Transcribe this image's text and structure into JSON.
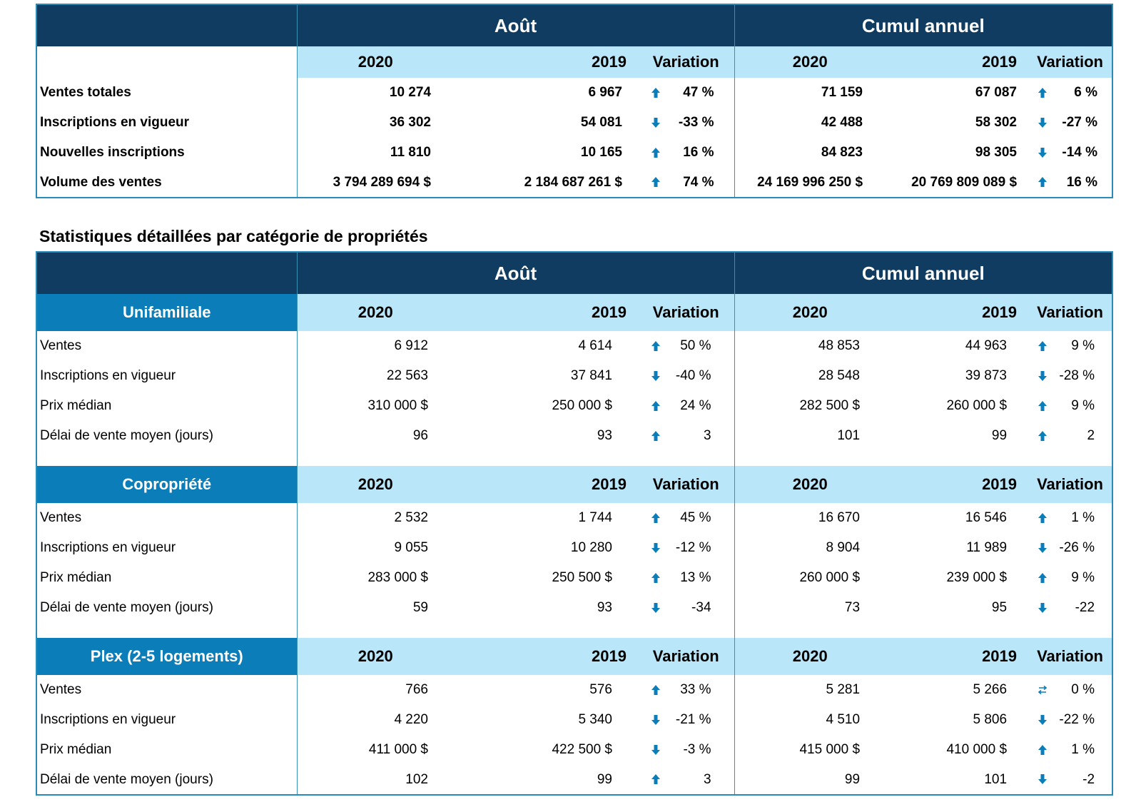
{
  "colors": {
    "dark_header": "#0f3c60",
    "light_header": "#b9e6f9",
    "category": "#0b7db8",
    "arrow": "#0b7db8"
  },
  "summary": {
    "period1": "Août",
    "period2": "Cumul annuel",
    "cols": [
      "2020",
      "2019",
      "Variation",
      "2020",
      "2019",
      "Variation"
    ],
    "rows": [
      {
        "label": "Ventes totales",
        "a20": "10 274",
        "a19": "6 967",
        "ad": "up",
        "av": "47 %",
        "c20": "71 159",
        "c19": "67 087",
        "cd": "up",
        "cv": "6 %"
      },
      {
        "label": "Inscriptions en vigueur",
        "a20": "36 302",
        "a19": "54 081",
        "ad": "down",
        "av": "-33 %",
        "c20": "42 488",
        "c19": "58 302",
        "cd": "down",
        "cv": "-27 %"
      },
      {
        "label": "Nouvelles inscriptions",
        "a20": "11 810",
        "a19": "10 165",
        "ad": "up",
        "av": "16 %",
        "c20": "84 823",
        "c19": "98 305",
        "cd": "down",
        "cv": "-14 %"
      },
      {
        "label": "Volume des ventes",
        "a20": "3 794 289 694  $",
        "a19": "2 184 687 261  $",
        "ad": "up",
        "av": "74 %",
        "c20": "24 169 996 250  $",
        "c19": "20 769 809 089  $",
        "cd": "up",
        "cv": "16 %"
      }
    ]
  },
  "detail_title": "Statistiques détaillées par catégorie de propriétés",
  "detail": {
    "period1": "Août",
    "period2": "Cumul annuel",
    "cols": [
      "2020",
      "2019",
      "Variation",
      "2020",
      "2019",
      "Variation"
    ],
    "categories": [
      {
        "name": "Unifamiliale",
        "rows": [
          {
            "label": "Ventes",
            "a20": "6 912",
            "a19": "4 614",
            "ad": "up",
            "av": "50 %",
            "c20": "48 853",
            "c19": "44 963",
            "cd": "up",
            "cv": "9 %"
          },
          {
            "label": "Inscriptions en vigueur",
            "a20": "22 563",
            "a19": "37 841",
            "ad": "down",
            "av": "-40 %",
            "c20": "28 548",
            "c19": "39 873",
            "cd": "down",
            "cv": "-28 %"
          },
          {
            "label": "Prix médian",
            "a20": "310 000 $",
            "a19": "250 000 $",
            "ad": "up",
            "av": "24 %",
            "c20": "282 500 $",
            "c19": "260 000 $",
            "cd": "up",
            "cv": "9 %"
          },
          {
            "label": "Délai de vente moyen (jours)",
            "a20": "96",
            "a19": "93",
            "ad": "up",
            "av": "3",
            "c20": "101",
            "c19": "99",
            "cd": "up",
            "cv": "2"
          }
        ]
      },
      {
        "name": "Copropriété",
        "rows": [
          {
            "label": "Ventes",
            "a20": "2 532",
            "a19": "1 744",
            "ad": "up",
            "av": "45 %",
            "c20": "16 670",
            "c19": "16 546",
            "cd": "up",
            "cv": "1 %"
          },
          {
            "label": "Inscriptions en vigueur",
            "a20": "9 055",
            "a19": "10 280",
            "ad": "down",
            "av": "-12 %",
            "c20": "8 904",
            "c19": "11 989",
            "cd": "down",
            "cv": "-26 %"
          },
          {
            "label": "Prix médian",
            "a20": "283 000 $",
            "a19": "250 500 $",
            "ad": "up",
            "av": "13 %",
            "c20": "260 000 $",
            "c19": "239 000 $",
            "cd": "up",
            "cv": "9 %"
          },
          {
            "label": "Délai de vente moyen (jours)",
            "a20": "59",
            "a19": "93",
            "ad": "down",
            "av": "-34",
            "c20": "73",
            "c19": "95",
            "cd": "down",
            "cv": "-22"
          }
        ]
      },
      {
        "name": "Plex (2-5 logements)",
        "rows": [
          {
            "label": "Ventes",
            "a20": "766",
            "a19": "576",
            "ad": "up",
            "av": "33 %",
            "c20": "5 281",
            "c19": "5 266",
            "cd": "flat",
            "cv": "0 %"
          },
          {
            "label": "Inscriptions en vigueur",
            "a20": "4 220",
            "a19": "5 340",
            "ad": "down",
            "av": "-21 %",
            "c20": "4 510",
            "c19": "5 806",
            "cd": "down",
            "cv": "-22 %"
          },
          {
            "label": "Prix médian",
            "a20": "411 000 $",
            "a19": "422 500 $",
            "ad": "down",
            "av": "-3 %",
            "c20": "415 000 $",
            "c19": "410 000 $",
            "cd": "up",
            "cv": "1 %"
          },
          {
            "label": "Délai de vente moyen (jours)",
            "a20": "102",
            "a19": "99",
            "ad": "up",
            "av": "3",
            "c20": "99",
            "c19": "101",
            "cd": "down",
            "cv": "-2"
          }
        ]
      }
    ]
  }
}
